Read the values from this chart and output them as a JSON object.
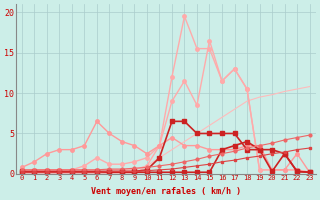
{
  "x": [
    0,
    1,
    2,
    3,
    4,
    5,
    6,
    7,
    8,
    9,
    10,
    11,
    12,
    13,
    14,
    15,
    16,
    17,
    18,
    19,
    20,
    21,
    22,
    23
  ],
  "bg_color": "#cceee8",
  "grid_color": "#aacccc",
  "xlabel": "Vent moyen/en rafales ( km/h )",
  "xlabel_color": "#cc0000",
  "tick_color": "#cc0000",
  "xlim": [
    -0.5,
    23.5
  ],
  "ylim": [
    0,
    21
  ],
  "yticks": [
    0,
    5,
    10,
    15,
    20
  ],
  "xticks": [
    0,
    1,
    2,
    3,
    4,
    5,
    6,
    7,
    8,
    9,
    10,
    11,
    12,
    13,
    14,
    15,
    16,
    17,
    18,
    19,
    20,
    21,
    22,
    23
  ],
  "lineA_y": [
    0.2,
    0.2,
    0.2,
    0.2,
    0.2,
    0.2,
    0.2,
    0.3,
    0.3,
    0.3,
    0.4,
    0.5,
    0.6,
    0.8,
    1.0,
    1.2,
    1.5,
    1.7,
    2.0,
    2.2,
    2.5,
    2.7,
    3.0,
    3.2
  ],
  "lineA_color": "#dd4444",
  "lineA_marker": "s",
  "lineA_markersize": 2.0,
  "lineA_linewidth": 0.8,
  "lineB_y": [
    0.5,
    0.5,
    0.5,
    0.5,
    0.5,
    0.5,
    0.5,
    0.6,
    0.6,
    0.7,
    0.8,
    1.0,
    1.2,
    1.5,
    1.8,
    2.2,
    2.5,
    2.8,
    3.2,
    3.5,
    3.8,
    4.2,
    4.5,
    4.8
  ],
  "lineB_color": "#ee6666",
  "lineB_marker": "o",
  "lineB_markersize": 2.0,
  "lineB_linewidth": 0.8,
  "lineC_y": [
    0.8,
    1.5,
    2.5,
    3.0,
    3.0,
    3.5,
    6.5,
    5.0,
    4.0,
    3.5,
    2.5,
    3.5,
    4.5,
    3.5,
    3.5,
    3.0,
    3.0,
    3.0,
    3.5,
    3.5,
    0.5,
    0.5,
    2.5,
    0.2
  ],
  "lineC_color": "#ff9999",
  "lineC_marker": "o",
  "lineC_markersize": 2.5,
  "lineC_linewidth": 1.0,
  "lineD_y": [
    0.5,
    0.5,
    0.5,
    0.5,
    0.5,
    1.0,
    2.0,
    1.2,
    1.2,
    1.5,
    2.0,
    3.5,
    9.0,
    11.5,
    8.5,
    16.5,
    11.5,
    13.0,
    10.5,
    0.5,
    0.5,
    0.5,
    0.5,
    0.2
  ],
  "lineD_color": "#ffaaaa",
  "lineD_marker": "o",
  "lineD_markersize": 2.5,
  "lineD_linewidth": 1.0,
  "lineE_y": [
    0.5,
    0.5,
    0.5,
    0.5,
    0.5,
    0.5,
    0.5,
    0.5,
    0.5,
    0.5,
    1.0,
    3.5,
    12.0,
    19.5,
    15.5,
    15.5,
    11.5,
    13.0,
    10.5,
    0.5,
    0.5,
    0.5,
    0.5,
    0.2
  ],
  "lineE_color": "#ffaaaa",
  "lineE_marker": "o",
  "lineE_markersize": 2.5,
  "lineE_linewidth": 1.0,
  "lineF_y": [
    0.3,
    0.3,
    0.3,
    0.3,
    0.3,
    0.3,
    0.3,
    0.3,
    0.3,
    0.3,
    0.5,
    2.0,
    6.5,
    6.5,
    5.0,
    5.0,
    5.0,
    5.0,
    3.0,
    3.0,
    0.3,
    2.5,
    0.3,
    0.2
  ],
  "lineF_color": "#cc2222",
  "lineF_marker": "s",
  "lineF_markersize": 2.5,
  "lineF_linewidth": 1.2,
  "lineG_y": [
    0.2,
    0.2,
    0.2,
    0.2,
    0.2,
    0.2,
    0.2,
    0.2,
    0.2,
    0.2,
    0.2,
    0.2,
    0.2,
    0.2,
    0.2,
    0.2,
    3.0,
    3.5,
    4.0,
    3.0,
    3.0,
    2.5,
    0.3,
    0.2
  ],
  "lineG_color": "#cc2222",
  "lineG_marker": "s",
  "lineG_markersize": 2.5,
  "lineG_linewidth": 1.2,
  "lineH_y": [
    0,
    0,
    0,
    0,
    0,
    0,
    0,
    0,
    0,
    0,
    1,
    2,
    3,
    4,
    5,
    6,
    7,
    8,
    9,
    9.5,
    9.8,
    10.2,
    10.5,
    10.8
  ],
  "lineH_color": "#ffbbbb",
  "lineH_linewidth": 0.8,
  "lineH_marker": "none"
}
